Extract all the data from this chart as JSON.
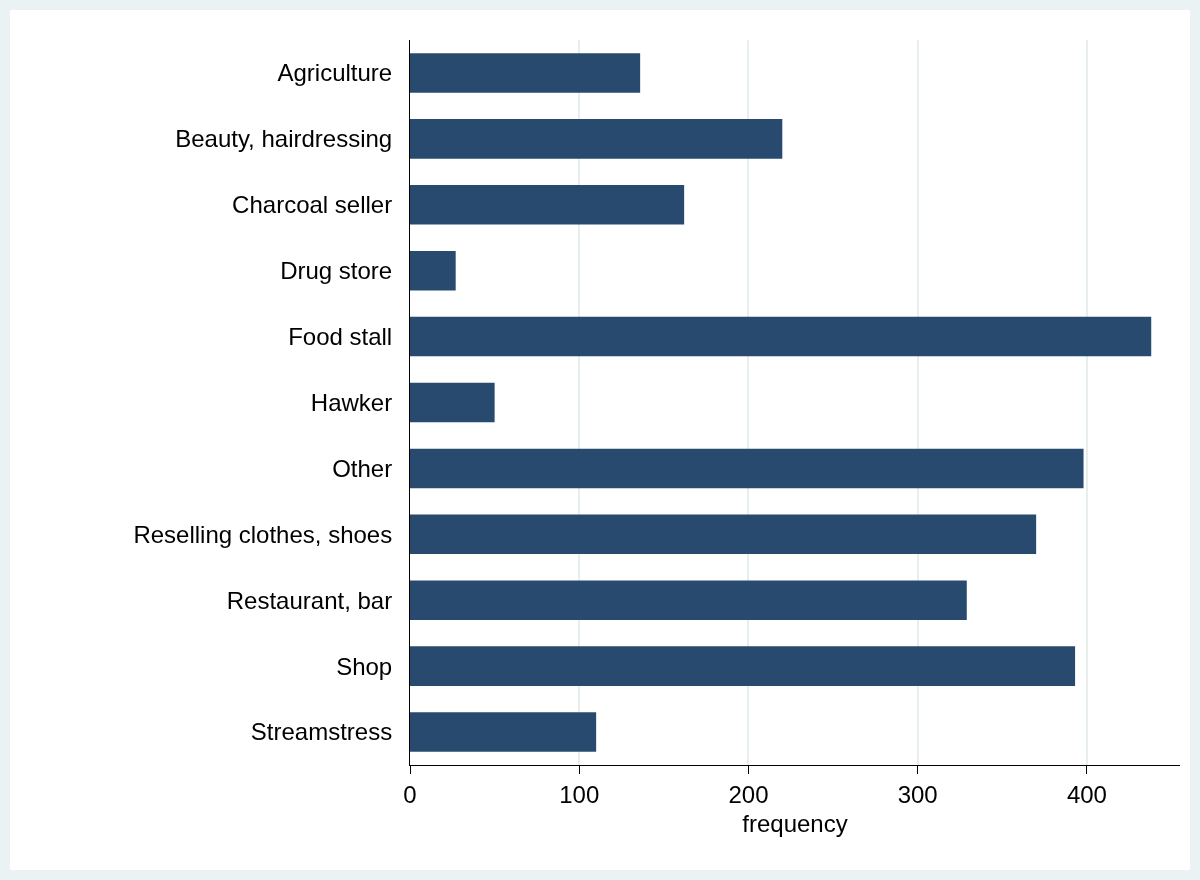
{
  "chart_data": {
    "type": "bar",
    "orientation": "horizontal",
    "xlabel": "frequency",
    "categories": [
      "Agriculture",
      "Beauty, hairdressing",
      "Charcoal seller",
      "Drug store",
      "Food stall",
      "Hawker",
      "Other",
      "Reselling clothes, shoes",
      "Restaurant, bar",
      "Shop",
      "Streamstress"
    ],
    "values": [
      136,
      220,
      162,
      27,
      438,
      50,
      398,
      370,
      329,
      393,
      110
    ],
    "color": "#284a6e",
    "xlim": [
      0,
      455
    ],
    "xticks": [
      0,
      100,
      200,
      300,
      400
    ],
    "grid": "x",
    "legend": false
  }
}
